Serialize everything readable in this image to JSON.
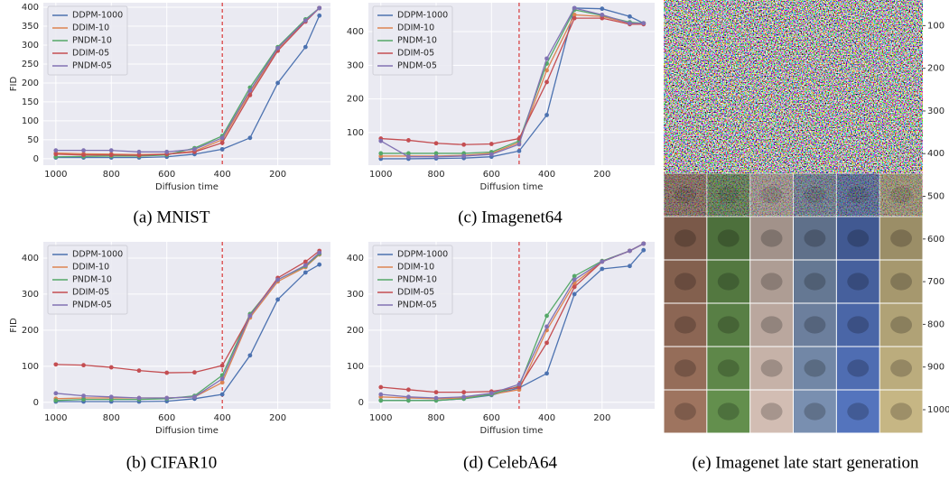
{
  "chart_data": [
    {
      "type": "line",
      "caption": "(a) MNIST",
      "xlabel": "Diffusion time",
      "ylabel": "FID",
      "x": [
        1000,
        900,
        800,
        700,
        600,
        500,
        400,
        300,
        200,
        100,
        50
      ],
      "xlim": [
        1045,
        10
      ],
      "xticks": [
        1000,
        800,
        600,
        400,
        200
      ],
      "ylim": [
        -17,
        412
      ],
      "yticks": [
        0,
        50,
        100,
        150,
        200,
        250,
        300,
        350,
        400
      ],
      "grid": true,
      "legend": "upper left",
      "vline": 400,
      "vline_color": "#d62728",
      "series": [
        {
          "name": "DDPM-1000",
          "color": "#4c72b0",
          "values": [
            3,
            3,
            3,
            3,
            5,
            12,
            25,
            55,
            200,
            295,
            378
          ]
        },
        {
          "name": "DDIM-10",
          "color": "#dd8452",
          "values": [
            15,
            13,
            12,
            11,
            12,
            20,
            50,
            175,
            290,
            365,
            398
          ]
        },
        {
          "name": "PNDM-10",
          "color": "#55a868",
          "values": [
            5,
            6,
            7,
            7,
            10,
            28,
            60,
            188,
            295,
            368,
            398
          ]
        },
        {
          "name": "DDIM-05",
          "color": "#c44e52",
          "values": [
            12,
            10,
            10,
            9,
            12,
            18,
            42,
            168,
            285,
            362,
            398
          ]
        },
        {
          "name": "PNDM-05",
          "color": "#8172b3",
          "values": [
            22,
            22,
            22,
            18,
            18,
            25,
            55,
            180,
            292,
            365,
            398
          ]
        }
      ]
    },
    {
      "type": "line",
      "caption": "(b) CIFAR10",
      "xlabel": "Diffusion time",
      "ylabel": "FID",
      "x": [
        1000,
        900,
        800,
        700,
        600,
        500,
        400,
        300,
        200,
        100,
        50
      ],
      "xlim": [
        1045,
        10
      ],
      "xticks": [
        1000,
        800,
        600,
        400,
        200
      ],
      "ylim": [
        -18,
        445
      ],
      "yticks": [
        0,
        100,
        200,
        300,
        400
      ],
      "grid": true,
      "legend": "upper left",
      "vline": 400,
      "vline_color": "#d62728",
      "series": [
        {
          "name": "DDPM-1000",
          "color": "#4c72b0",
          "values": [
            2,
            2,
            2,
            2,
            3,
            10,
            22,
            130,
            285,
            360,
            382
          ]
        },
        {
          "name": "DDIM-10",
          "color": "#dd8452",
          "values": [
            10,
            12,
            12,
            12,
            12,
            15,
            55,
            235,
            335,
            375,
            410
          ]
        },
        {
          "name": "PNDM-10",
          "color": "#55a868",
          "values": [
            5,
            8,
            8,
            8,
            10,
            18,
            75,
            245,
            340,
            378,
            412
          ]
        },
        {
          "name": "DDIM-05",
          "color": "#c44e52",
          "values": [
            105,
            103,
            97,
            88,
            82,
            83,
            102,
            240,
            345,
            390,
            420
          ]
        },
        {
          "name": "PNDM-05",
          "color": "#8172b3",
          "values": [
            25,
            18,
            15,
            12,
            12,
            15,
            65,
            240,
            340,
            380,
            415
          ]
        }
      ]
    },
    {
      "type": "line",
      "caption": "(c) Imagenet64",
      "xlabel": "Diffusion time",
      "x": [
        1000,
        900,
        800,
        700,
        600,
        500,
        400,
        300,
        200,
        100,
        50
      ],
      "xlim": [
        1045,
        10
      ],
      "xticks": [
        1000,
        800,
        600,
        400,
        200
      ],
      "ylim": [
        3,
        486
      ],
      "yticks": [
        100,
        200,
        300,
        400
      ],
      "grid": true,
      "legend": "upper left",
      "vline": 500,
      "vline_color": "#d62728",
      "series": [
        {
          "name": "DDPM-1000",
          "color": "#4c72b0",
          "values": [
            22,
            22,
            23,
            24,
            28,
            45,
            152,
            470,
            468,
            445,
            425
          ]
        },
        {
          "name": "DDIM-10",
          "color": "#dd8452",
          "values": [
            30,
            30,
            30,
            32,
            38,
            70,
            285,
            450,
            445,
            425,
            425
          ]
        },
        {
          "name": "PNDM-10",
          "color": "#55a868",
          "values": [
            38,
            38,
            38,
            38,
            42,
            75,
            305,
            465,
            448,
            428,
            425
          ]
        },
        {
          "name": "DDIM-05",
          "color": "#c44e52",
          "values": [
            82,
            77,
            68,
            64,
            66,
            82,
            250,
            440,
            440,
            422,
            422
          ]
        },
        {
          "name": "PNDM-05",
          "color": "#8172b3",
          "values": [
            75,
            28,
            28,
            30,
            35,
            65,
            320,
            470,
            450,
            425,
            425
          ]
        }
      ]
    },
    {
      "type": "line",
      "caption": "(d) CelebA64",
      "xlabel": "Diffusion time",
      "x": [
        1000,
        900,
        800,
        700,
        600,
        500,
        400,
        300,
        200,
        100,
        50
      ],
      "xlim": [
        1045,
        10
      ],
      "xticks": [
        1000,
        800,
        600,
        400,
        200
      ],
      "ylim": [
        -18,
        445
      ],
      "yticks": [
        0,
        100,
        200,
        300,
        400
      ],
      "grid": true,
      "legend": "upper left",
      "vline": 500,
      "vline_color": "#d62728",
      "series": [
        {
          "name": "DDPM-1000",
          "color": "#4c72b0",
          "values": [
            5,
            5,
            5,
            10,
            20,
            40,
            80,
            300,
            370,
            378,
            422
          ]
        },
        {
          "name": "DDIM-10",
          "color": "#dd8452",
          "values": [
            15,
            12,
            10,
            12,
            22,
            35,
            200,
            330,
            390,
            420,
            440
          ]
        },
        {
          "name": "PNDM-10",
          "color": "#55a868",
          "values": [
            5,
            5,
            5,
            10,
            22,
            45,
            240,
            350,
            392,
            420,
            440
          ]
        },
        {
          "name": "DDIM-05",
          "color": "#c44e52",
          "values": [
            42,
            35,
            28,
            28,
            30,
            42,
            165,
            320,
            390,
            420,
            440
          ]
        },
        {
          "name": "PNDM-05",
          "color": "#8172b3",
          "values": [
            22,
            15,
            12,
            15,
            25,
            50,
            210,
            340,
            390,
            420,
            440
          ]
        }
      ]
    },
    {
      "type": "image",
      "caption": "(e) Imagenet late start generation",
      "ylim": [
        40,
        1055
      ],
      "yticks": [
        100,
        200,
        300,
        400,
        500,
        600,
        700,
        800,
        900,
        1000
      ]
    }
  ]
}
